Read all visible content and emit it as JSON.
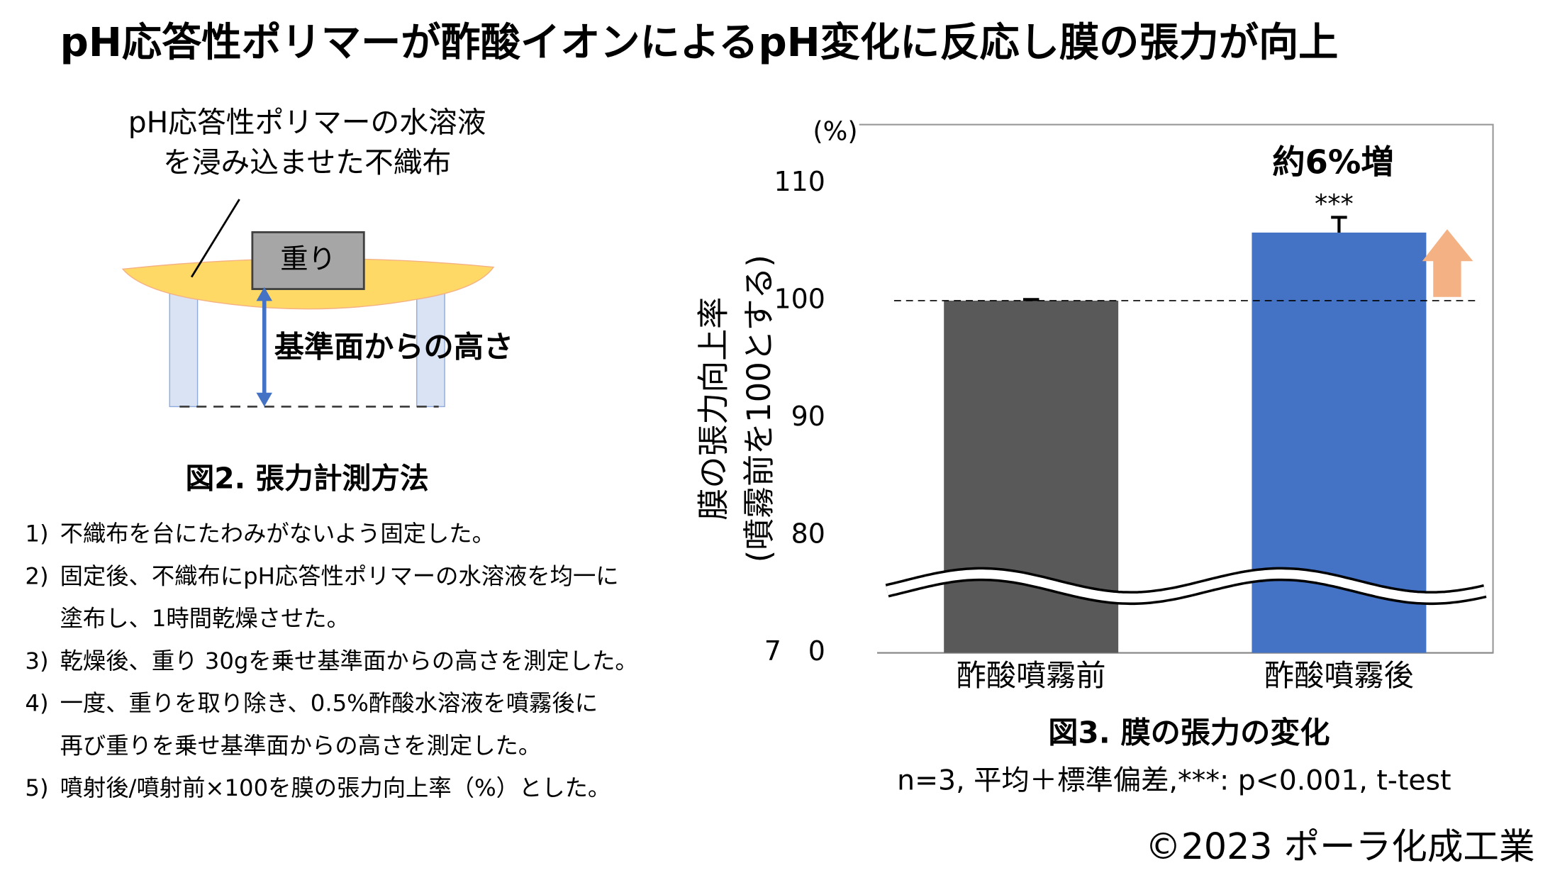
{
  "title": "pH応答性ポリマーが酢酸イオンによるpH変化に反応し膜の張力が向上",
  "diagram": {
    "label_lines": [
      "pH応答性ポリマーの水溶液",
      "を浸み込ませた不織布"
    ],
    "weight": "重り",
    "height_label": "基準面からの高さ",
    "caption": "図2. 張力計測方法",
    "steps": [
      {
        "num": "1)",
        "lines": [
          "不織布を台にたわみがないよう固定した。"
        ]
      },
      {
        "num": "2)",
        "lines": [
          "固定後、不織布にpH応答性ポリマーの水溶液を均一に",
          "塗布し、1時間乾燥させた。"
        ]
      },
      {
        "num": "3)",
        "lines": [
          "乾燥後、重り 30gを乗せ基準面からの高さを測定した。"
        ]
      },
      {
        "num": "4)",
        "lines": [
          "一度、重りを取り除き、0.5%酢酸水溶液を噴霧後に",
          "再び重りを乗せ基準面からの高さを測定した。"
        ]
      },
      {
        "num": "5)",
        "lines": [
          "噴射後/噴射前×100を膜の張力向上率（%）とした。"
        ]
      }
    ]
  },
  "chart_data": {
    "type": "bar",
    "unit_label": "(%)",
    "y_label_lines": [
      "膜の張力向上率",
      "(噴霧前を100とする)"
    ],
    "categories": [
      "酢酸噴霧前",
      "酢酸噴霧後"
    ],
    "values": [
      100,
      105.8
    ],
    "errors": [
      0.1,
      1.3
    ],
    "colors": [
      "#595959",
      "#4472c4"
    ],
    "ylim": [
      70,
      115
    ],
    "yticks": [
      {
        "value": 70,
        "label": "7　0"
      },
      80,
      90,
      100,
      110
    ],
    "reference": 100,
    "annotation": "約6%増",
    "significance": "***",
    "caption": "図3. 膜の張力の変化",
    "note": "n=3, 平均＋標準偏差,***: p<0.001, t-test"
  },
  "copyright": "©2023 ポーラ化成工業"
}
